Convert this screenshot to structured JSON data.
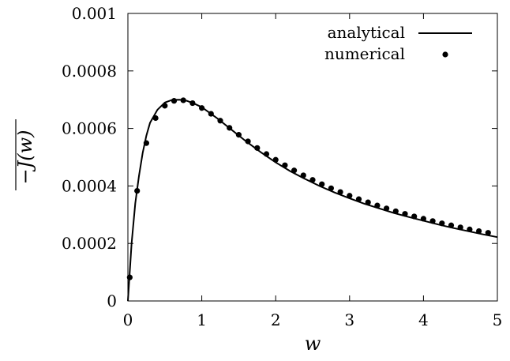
{
  "chart_data": {
    "type": "line",
    "title": "",
    "xlabel": "w",
    "ylabel": "−J(w)",
    "xlim": [
      0,
      5
    ],
    "ylim": [
      0,
      0.001
    ],
    "x_ticks": [
      "0",
      "1",
      "2",
      "3",
      "4",
      "5"
    ],
    "y_ticks": [
      "0",
      "0.0002",
      "0.0004",
      "0.0006",
      "0.0008",
      "0.001"
    ],
    "grid": false,
    "legend_position": "top-right",
    "series": [
      {
        "name": "analytical",
        "style": "line",
        "color": "#000000",
        "x": [
          0,
          0.02,
          0.05,
          0.1,
          0.15,
          0.2,
          0.25,
          0.3,
          0.4,
          0.5,
          0.6,
          0.7,
          0.8,
          0.9,
          1.0,
          1.2,
          1.4,
          1.6,
          1.8,
          2.0,
          2.2,
          2.4,
          2.6,
          2.8,
          3.0,
          3.2,
          3.4,
          3.6,
          3.8,
          4.0,
          4.2,
          4.4,
          4.6,
          4.8,
          5.0
        ],
        "y": [
          0,
          8e-05,
          0.0002,
          0.00034,
          0.000435,
          0.000515,
          0.000575,
          0.00062,
          0.000665,
          0.00069,
          0.0006995,
          0.0007,
          0.000696,
          0.000686,
          0.000674,
          0.000637,
          0.000596,
          0.000555,
          0.000517,
          0.000482,
          0.000451,
          0.000424,
          0.000399,
          0.000377,
          0.000357,
          0.000338,
          0.000322,
          0.000306,
          0.000292,
          0.000279,
          0.000266,
          0.000254,
          0.000243,
          0.000232,
          0.000222
        ]
      },
      {
        "name": "numerical",
        "style": "points",
        "color": "#000000",
        "x": [
          0.025,
          0.125,
          0.25,
          0.375,
          0.5,
          0.625,
          0.75,
          0.875,
          1.0,
          1.125,
          1.25,
          1.375,
          1.5,
          1.625,
          1.75,
          1.875,
          2.0,
          2.125,
          2.25,
          2.375,
          2.5,
          2.625,
          2.75,
          2.875,
          3.0,
          3.125,
          3.25,
          3.375,
          3.5,
          3.625,
          3.75,
          3.875,
          4.0,
          4.125,
          4.25,
          4.375,
          4.5,
          4.625,
          4.75,
          4.875
        ],
        "y": [
          8.2e-05,
          0.000383,
          0.000549,
          0.000636,
          0.000679,
          0.000696,
          0.000698,
          0.000688,
          0.000671,
          0.000651,
          0.000627,
          0.000602,
          0.000578,
          0.000555,
          0.000532,
          0.000511,
          0.000491,
          0.000472,
          0.000454,
          0.000437,
          0.000421,
          0.000406,
          0.000392,
          0.000379,
          0.000366,
          0.000354,
          0.000343,
          0.000332,
          0.000322,
          0.000312,
          0.000303,
          0.000294,
          0.000286,
          0.000278,
          0.00027,
          0.000263,
          0.000256,
          0.000249,
          0.000243,
          0.000237
        ]
      }
    ]
  }
}
